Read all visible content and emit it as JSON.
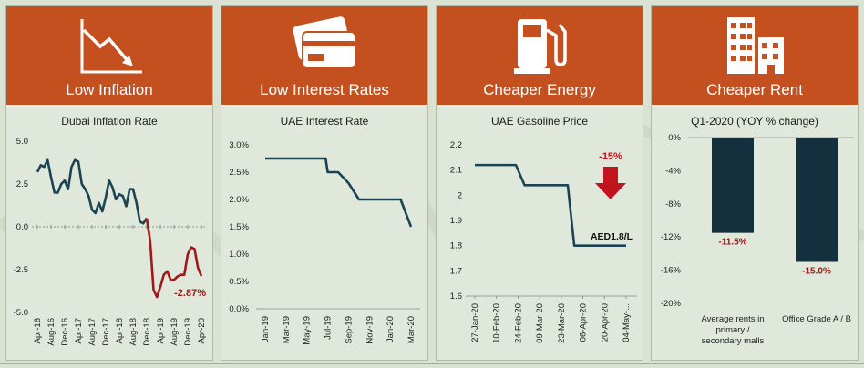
{
  "panels": [
    {
      "title": "Low Inflation",
      "icon": "declining-trend-icon"
    },
    {
      "title": "Low Interest Rates",
      "icon": "credit-card-icon"
    },
    {
      "title": "Cheaper Energy",
      "icon": "fuel-pump-icon"
    },
    {
      "title": "Cheaper Rent",
      "icon": "buildings-icon"
    }
  ],
  "colors": {
    "header": "#c4501f",
    "line": "#1b4354",
    "negative": "#a01818",
    "bar": "#14303f",
    "arrow": "#c0151c"
  },
  "chart_data": [
    {
      "type": "line",
      "title": "Dubai Inflation Rate",
      "ylim": [
        -5,
        5
      ],
      "yticks": [
        "5.0",
        "2.5",
        "0.0",
        "-2.5",
        "-5.0"
      ],
      "x_ticks": [
        "Apr-16",
        "Aug-16",
        "Dec-16",
        "Apr-17",
        "Aug-17",
        "Dec-17",
        "Apr-18",
        "Aug-18",
        "Dec-18",
        "Apr-19",
        "Aug-19",
        "Dec-19",
        "Apr-20"
      ],
      "x_index_range": [
        0,
        48
      ],
      "series": [
        {
          "points_x": [
            0,
            1,
            2,
            3,
            4,
            5,
            6,
            7,
            8,
            9,
            10,
            11,
            12,
            13,
            14,
            15,
            16,
            17,
            18,
            19,
            20,
            21,
            22,
            23,
            24,
            25,
            26,
            27,
            28,
            29,
            30,
            31,
            32
          ],
          "values": [
            3.2,
            3.6,
            3.5,
            3.9,
            2.9,
            2.0,
            2.0,
            2.5,
            2.7,
            2.2,
            3.5,
            3.9,
            3.8,
            2.5,
            2.2,
            1.8,
            1.0,
            0.8,
            1.4,
            0.9,
            1.7,
            2.7,
            2.3,
            1.6,
            1.9,
            1.8,
            1.2,
            2.2,
            2.2,
            1.4,
            0.3,
            0.2,
            0.5
          ]
        },
        {
          "points_x": [
            32,
            33,
            34,
            35,
            36,
            37,
            38,
            39,
            40,
            41,
            42,
            43,
            44,
            45,
            46,
            47,
            48
          ],
          "values": [
            0.5,
            -0.8,
            -3.7,
            -4.1,
            -3.5,
            -2.8,
            -2.6,
            -3.1,
            -3.1,
            -2.9,
            -2.8,
            -2.8,
            -1.6,
            -1.2,
            -1.3,
            -2.4,
            -2.87
          ]
        }
      ],
      "annotation": "-2.87%"
    },
    {
      "type": "line",
      "title": "UAE Interest Rate",
      "ylim": [
        0,
        3
      ],
      "yticks": [
        "3.0%",
        "2.5%",
        "2.0%",
        "1.5%",
        "1.0%",
        "0.5%",
        "0.0%"
      ],
      "x_ticks": [
        "Jan-19",
        "Mar-19",
        "May-19",
        "Jul-19",
        "Sep-19",
        "Nov-19",
        "Jan-20",
        "Mar-20"
      ],
      "x_index_range": [
        0,
        14
      ],
      "series": [
        {
          "points_x": [
            0,
            2,
            4,
            5.8,
            6,
            6.8,
            7,
            8,
            9,
            10,
            11,
            12,
            13,
            14
          ],
          "values": [
            2.75,
            2.75,
            2.75,
            2.75,
            2.5,
            2.5,
            2.5,
            2.3,
            2.0,
            2.0,
            2.0,
            2.0,
            2.0,
            1.5
          ]
        }
      ]
    },
    {
      "type": "line",
      "title": "UAE Gasoline Price",
      "ylim": [
        1.6,
        2.2
      ],
      "yticks": [
        "2.2",
        "2.1",
        "2",
        "1.9",
        "1.8",
        "1.7",
        "1.6"
      ],
      "x_ticks": [
        "27-Jan-20",
        "10-Feb-20",
        "24-Feb-20",
        "09-Mar-20",
        "23-Mar-20",
        "06-Apr-20",
        "20-Apr-20",
        "04-May-..."
      ],
      "x_index_range": [
        0,
        7
      ],
      "series": [
        {
          "points_x": [
            0,
            1,
            1.9,
            2.3,
            3,
            4,
            4.3,
            4.6,
            5,
            6,
            7
          ],
          "values": [
            2.12,
            2.12,
            2.12,
            2.04,
            2.04,
            2.04,
            2.04,
            1.8,
            1.8,
            1.8,
            1.8
          ]
        }
      ],
      "change_label": "-15%",
      "end_label": "AED1.8/L"
    },
    {
      "type": "bar",
      "title": "Q1-2020 (YOY % change)",
      "ylim": [
        -20,
        0
      ],
      "yticks": [
        "0%",
        "-4%",
        "-8%",
        "-12%",
        "-16%",
        "-20%"
      ],
      "categories": [
        "Average rents in primary / secondary malls",
        "Office Grade A / B"
      ],
      "category_lines": [
        [
          "Average rents in",
          "primary /",
          "secondary malls"
        ],
        [
          "Office Grade A / B"
        ]
      ],
      "values": [
        -11.5,
        -15.0
      ],
      "value_labels": [
        "-11.5%",
        "-15.0%"
      ]
    }
  ]
}
